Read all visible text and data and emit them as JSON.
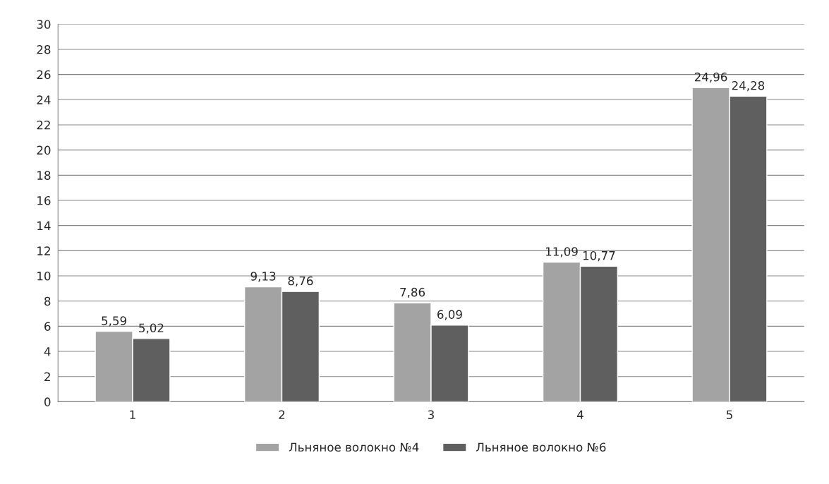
{
  "chart_data": {
    "type": "bar",
    "categories": [
      "1",
      "2",
      "3",
      "4",
      "5"
    ],
    "series": [
      {
        "name": "Льняное волокно №4",
        "color": "#a3a3a3",
        "values": [
          5.59,
          9.13,
          7.86,
          11.09,
          24.96
        ],
        "value_labels": [
          "5,59",
          "9,13",
          "7,86",
          "11,09",
          "24,96"
        ]
      },
      {
        "name": "Льняное волокно №6",
        "color": "#5f5f5f",
        "values": [
          5.02,
          8.76,
          6.09,
          10.77,
          24.28
        ],
        "value_labels": [
          "5,02",
          "8,76",
          "6,09",
          "10,77",
          "24,28"
        ]
      }
    ],
    "ylim": [
      0,
      30
    ],
    "yticks": [
      0,
      2,
      4,
      6,
      8,
      10,
      12,
      14,
      16,
      18,
      20,
      22,
      24,
      26,
      28,
      30
    ],
    "grid": "y",
    "legend": "bottom"
  }
}
